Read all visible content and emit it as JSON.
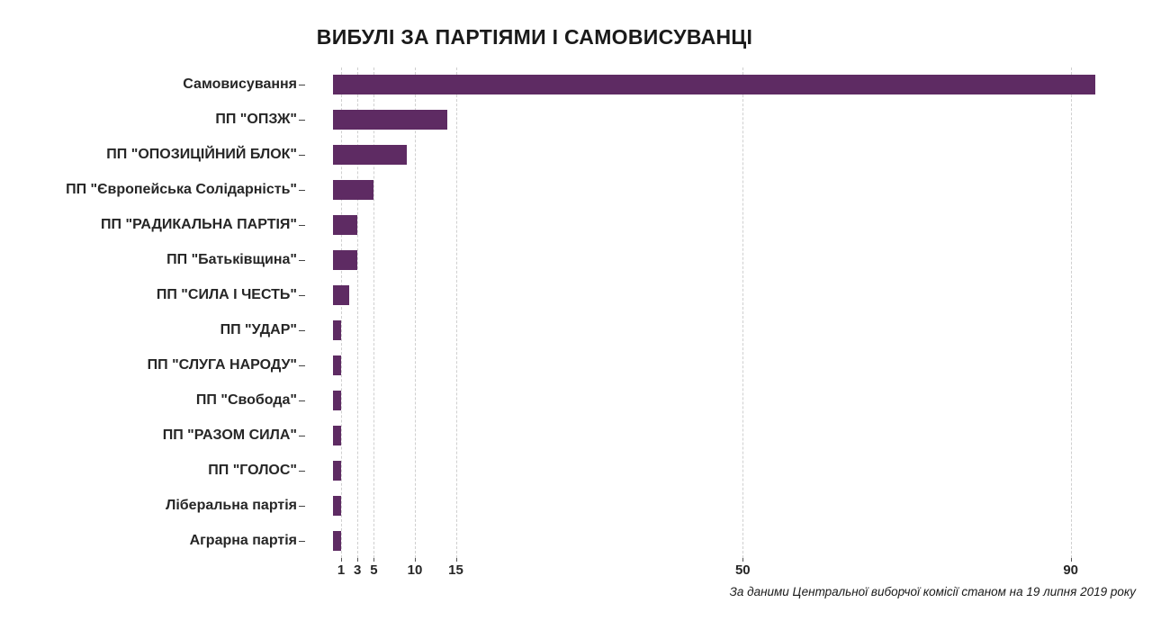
{
  "title": "ВИБУЛІ ЗА ПАРТІЯМИ І САМОВИСУВАНЦІ",
  "source_note": "За даними Центральної виборчої комісії станом на 19 липня 2019 року",
  "colors": {
    "bar": "#5e2b63",
    "text": "#262626",
    "gridline": "#cfcfcf",
    "background": "#ffffff"
  },
  "chart_data": {
    "type": "bar",
    "orientation": "horizontal",
    "title": "ВИБУЛІ ЗА ПАРТІЯМИ І САМОВИСУВАНЦІ",
    "categories": [
      "Самовисування",
      "ПП \"ОПЗЖ\"",
      "ПП \"ОПОЗИЦІЙНИЙ БЛОК\"",
      "ПП \"Європейська Солідарність\"",
      "ПП \"РАДИКАЛЬНА ПАРТІЯ\"",
      "ПП \"Батьківщина\"",
      "ПП \"СИЛА І ЧЕСТЬ\"",
      "ПП \"УДАР\"",
      "ПП \"СЛУГА НАРОДУ\"",
      "ПП \"Свобода\"",
      "ПП \"РАЗОМ СИЛА\"",
      "ПП \"ГОЛОС\"",
      "Ліберальна партія",
      "Аграрна партія"
    ],
    "values": [
      93,
      14,
      9,
      5,
      3,
      3,
      2,
      1,
      1,
      1,
      1,
      1,
      1,
      1
    ],
    "x_ticks": [
      1,
      3,
      5,
      10,
      15,
      50,
      90
    ],
    "x_tick_labels": [
      "1",
      "3",
      "5",
      "10",
      "15",
      "50",
      "90"
    ],
    "xlim": [
      -3.5,
      97.5
    ],
    "xlabel": "",
    "ylabel": "",
    "grid": "vertical dashed at x ticks",
    "legend": "none",
    "annotation": "За даними Центральної виборчої комісії станом на 19 липня 2019 року"
  }
}
